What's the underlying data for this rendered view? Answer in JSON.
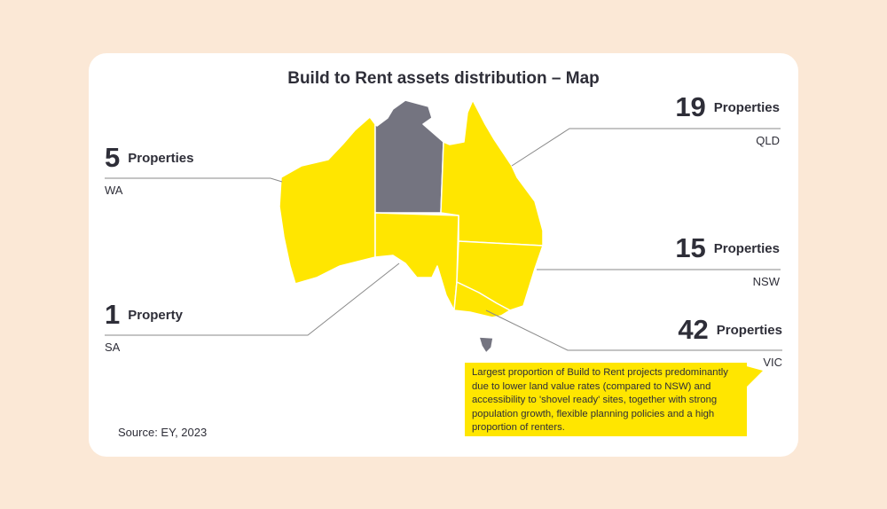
{
  "title": "Build to Rent assets distribution – Map",
  "colors": {
    "highlight": "#ffe600",
    "no_data": "#747480",
    "background": "#fbe8d6"
  },
  "states": [
    {
      "code": "WA",
      "count": "5",
      "unit": "Properties"
    },
    {
      "code": "QLD",
      "count": "19",
      "unit": "Properties"
    },
    {
      "code": "NSW",
      "count": "15",
      "unit": "Properties"
    },
    {
      "code": "SA",
      "count": "1",
      "unit": "Property"
    },
    {
      "code": "VIC",
      "count": "42",
      "unit": "Properties"
    }
  ],
  "callout": "Largest proportion of Build to Rent projects predominantly due to lower land value rates (compared to NSW) and accessibility to 'shovel ready' sites, together with strong population growth, flexible planning policies and a high proportion of renters.",
  "source": "Source: EY, 2023"
}
